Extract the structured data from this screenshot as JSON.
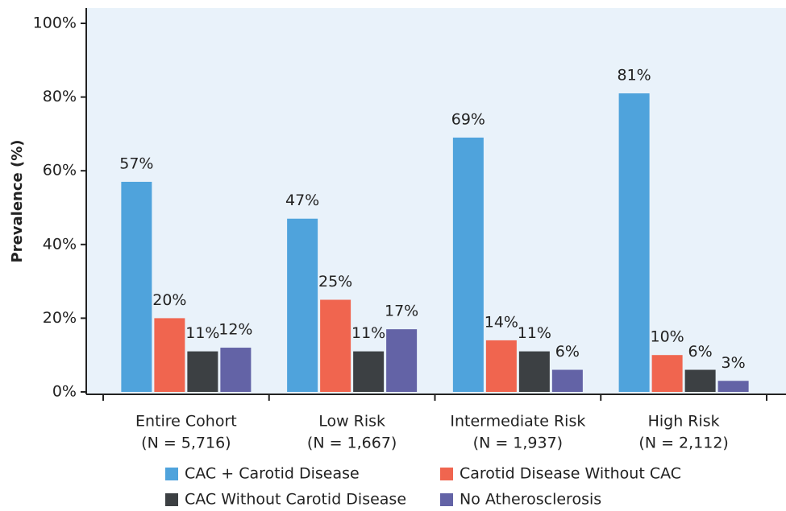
{
  "chart_data": {
    "type": "bar",
    "y_label": "Prevalence (%)",
    "categories": [
      "Entire Cohort",
      "Low Risk",
      "Intermediate Risk",
      "High Risk"
    ],
    "category_notes": [
      "(N = 5,716)",
      "(N = 1,667)",
      "(N = 1,937)",
      "(N = 2,112)"
    ],
    "series": [
      {
        "name": "CAC + Carotid Disease",
        "color": "#4fa3dc",
        "values": [
          57,
          47,
          69,
          81
        ],
        "value_labels": [
          "57%",
          "47%",
          "69%",
          "81%"
        ]
      },
      {
        "name": "Carotid Disease Without CAC",
        "color": "#f0654f",
        "values": [
          20,
          25,
          14,
          10
        ],
        "value_labels": [
          "20%",
          "25%",
          "14%",
          "10%"
        ]
      },
      {
        "name": "CAC Without Carotid Disease",
        "color": "#3c4043",
        "values": [
          11,
          11,
          11,
          6
        ],
        "value_labels": [
          "11%",
          "11%",
          "11%",
          "6%"
        ]
      },
      {
        "name": "No Atherosclerosis",
        "color": "#6363a6",
        "values": [
          12,
          17,
          6,
          3
        ],
        "value_labels": [
          "12%",
          "17%",
          "6%",
          "3%"
        ]
      }
    ],
    "ylim": [
      0,
      100
    ],
    "yticks": [
      {
        "value": 0,
        "label": "0%"
      },
      {
        "value": 20,
        "label": "20%"
      },
      {
        "value": 40,
        "label": "40%"
      },
      {
        "value": 60,
        "label": "60%"
      },
      {
        "value": 80,
        "label": "80%"
      },
      {
        "value": 100,
        "label": "100%"
      }
    ],
    "grid": false
  }
}
